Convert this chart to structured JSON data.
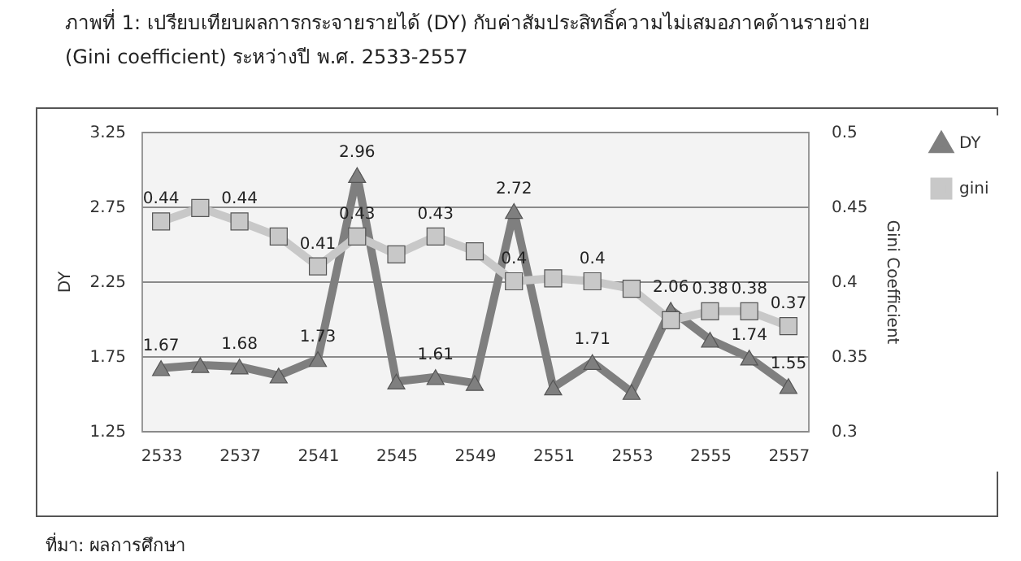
{
  "chart_data": {
    "type": "line",
    "title": "ภาพที่ 1:  เปรียบเทียบผลการกระจายรายได้ (DY) กับค่าสัมประสิทธิ์ความไม่เสมอภาคด้านรายจ่าย (Gini coefficient) ระหว่างปี พ.ศ. 2533-2557",
    "annotations": [
      "ที่มา:  ผลการศึกษา"
    ],
    "ylabel": "DY",
    "y2label": "Gini Coefficient",
    "categories": [
      "2533",
      null,
      "2537",
      null,
      "2541",
      null,
      "2545",
      null,
      "2549",
      null,
      "2551",
      null,
      "2553",
      null,
      "2555",
      null,
      "2557"
    ],
    "ylim": [
      1.25,
      3.25
    ],
    "yticks": [
      1.25,
      1.75,
      2.25,
      2.75,
      3.25
    ],
    "y2lim": [
      0.3,
      0.5
    ],
    "y2ticks": [
      0.3,
      0.35,
      0.4,
      0.45,
      0.5
    ],
    "grid": "y",
    "legend": "right",
    "series": [
      {
        "name": "DY",
        "color": "#7f7f7f",
        "marker": "triangle",
        "values": [
          1.67,
          1.69,
          1.68,
          1.62,
          1.73,
          2.96,
          1.58,
          1.61,
          1.57,
          2.72,
          1.54,
          1.71,
          1.51,
          2.06,
          1.86,
          1.74,
          1.55
        ],
        "value_labels": [
          "1.67",
          null,
          "1.68",
          null,
          "1.73",
          "2.96",
          null,
          "1.61",
          null,
          "2.72",
          null,
          "1.71",
          null,
          "2.06",
          null,
          "1.74",
          "1.55"
        ]
      },
      {
        "name": "gini",
        "color": "#c8c8c8",
        "marker": "square",
        "axis": "y2",
        "values": [
          0.44,
          0.449,
          0.44,
          0.43,
          0.41,
          0.43,
          0.418,
          0.43,
          0.42,
          0.4,
          0.402,
          0.4,
          0.395,
          0.374,
          0.38,
          0.38,
          0.37
        ],
        "value_labels": [
          "0.44",
          null,
          "0.44",
          null,
          "0.41",
          "0.43",
          null,
          "0.43",
          null,
          "0.4",
          null,
          "0.4",
          null,
          null,
          "0.38",
          "0.38",
          "0.37"
        ]
      }
    ]
  }
}
